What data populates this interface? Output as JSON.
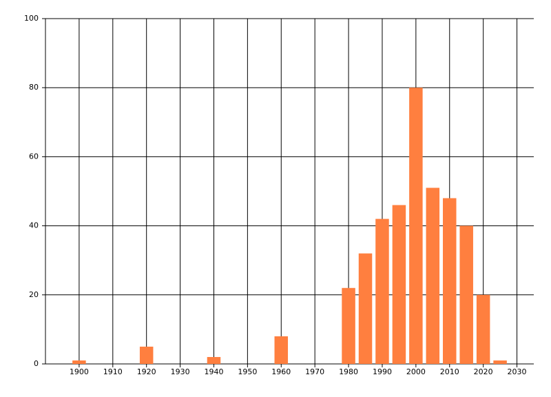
{
  "chart_data": {
    "type": "bar",
    "x": [
      1900,
      1920,
      1940,
      1960,
      1980,
      1985,
      1990,
      1995,
      2000,
      2005,
      2010,
      2015,
      2020,
      2025
    ],
    "values": [
      1,
      5,
      2,
      8,
      22,
      32,
      42,
      46,
      80,
      51,
      48,
      40,
      20,
      1
    ],
    "color": "#ff7f3f",
    "xlim": [
      1890,
      2035
    ],
    "xticks": [
      1900,
      1910,
      1920,
      1930,
      1940,
      1950,
      1960,
      1970,
      1980,
      1990,
      2000,
      2010,
      2020,
      2030
    ],
    "ylim": [
      0,
      100
    ],
    "yticks": [
      0,
      20,
      40,
      60,
      80,
      100
    ],
    "grid": true
  }
}
